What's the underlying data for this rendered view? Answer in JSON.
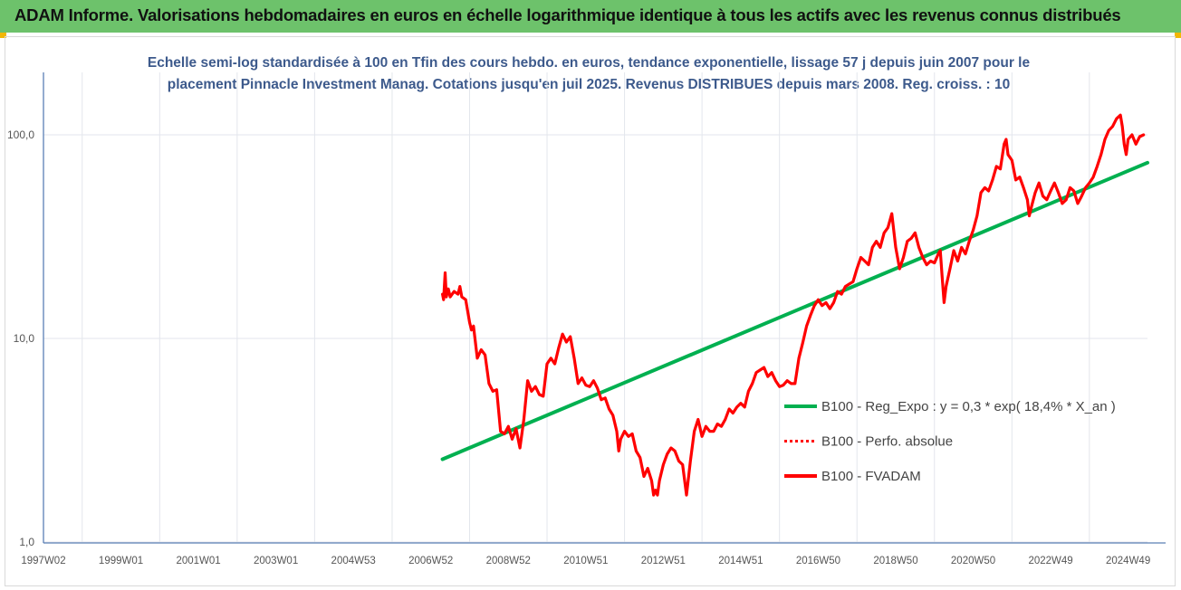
{
  "header": {
    "title": "ADAM Informe. Valorisations hebdomadaires en euros en échelle logarithmique identique à tous les actifs avec les revenus connus distribués",
    "banner_color": "#6dc26b",
    "corner_color": "#f2b705"
  },
  "chart_data": {
    "type": "line",
    "title_line1": "Echelle semi-log standardisée à 100 en Tfin des cours hebdo. en euros, tendance exponentielle, lissage 57 j depuis juin 2007 pour le",
    "title_line2": "placement Pinnacle Investment Manag. Cotations jusqu'en juil 2025. Revenus DISTRIBUES depuis mars 2008. Reg. croiss. : 10",
    "y_scale": "log",
    "ylim": [
      1,
      150
    ],
    "y_ticks": [
      {
        "value": 1,
        "label": "1,0"
      },
      {
        "value": 10,
        "label": "10,0"
      },
      {
        "value": 100,
        "label": "100,0"
      }
    ],
    "xlim": [
      1997.0,
      2025.5
    ],
    "x_ticks": [
      {
        "value": 1997.0,
        "label": "1997W02"
      },
      {
        "value": 1999.0,
        "label": "1999W01"
      },
      {
        "value": 2001.0,
        "label": "2001W01"
      },
      {
        "value": 2003.0,
        "label": "2003W01"
      },
      {
        "value": 2005.0,
        "label": "2004W53"
      },
      {
        "value": 2007.0,
        "label": "2006W52"
      },
      {
        "value": 2009.0,
        "label": "2008W52"
      },
      {
        "value": 2011.0,
        "label": "2010W51"
      },
      {
        "value": 2013.0,
        "label": "2012W51"
      },
      {
        "value": 2015.0,
        "label": "2014W51"
      },
      {
        "value": 2017.0,
        "label": "2016W50"
      },
      {
        "value": 2019.0,
        "label": "2018W50"
      },
      {
        "value": 2021.0,
        "label": "2020W50"
      },
      {
        "value": 2023.0,
        "label": "2022W49"
      },
      {
        "value": 2025.0,
        "label": "2024W49"
      }
    ],
    "grid": "vertical",
    "legend_position": "right",
    "series": [
      {
        "name": "B100 - Reg_Expo : y = 0,3 * exp( 18,4% *  X_an )",
        "color": "#00b050",
        "style": "solid",
        "points": [
          [
            2007.3,
            2.55
          ],
          [
            2025.5,
            73
          ]
        ]
      },
      {
        "name": "B100 - Perfo. absolue",
        "color": "#ff0000",
        "style": "dotted",
        "points": []
      },
      {
        "name": "B100 - FVADAM",
        "color": "#ff0000",
        "style": "solid",
        "points": [
          [
            2007.3,
            16.5
          ],
          [
            2007.33,
            15.5
          ],
          [
            2007.37,
            21.0
          ],
          [
            2007.4,
            16.0
          ],
          [
            2007.45,
            17.5
          ],
          [
            2007.5,
            16.0
          ],
          [
            2007.6,
            17.0
          ],
          [
            2007.7,
            16.5
          ],
          [
            2007.75,
            18.0
          ],
          [
            2007.8,
            16.0
          ],
          [
            2007.9,
            15.5
          ],
          [
            2008.0,
            12.0
          ],
          [
            2008.05,
            11.0
          ],
          [
            2008.1,
            11.5
          ],
          [
            2008.2,
            8.0
          ],
          [
            2008.3,
            8.8
          ],
          [
            2008.4,
            8.3
          ],
          [
            2008.5,
            6.0
          ],
          [
            2008.6,
            5.5
          ],
          [
            2008.7,
            5.6
          ],
          [
            2008.8,
            3.5
          ],
          [
            2008.9,
            3.4
          ],
          [
            2009.0,
            3.7
          ],
          [
            2009.1,
            3.2
          ],
          [
            2009.2,
            3.6
          ],
          [
            2009.3,
            2.9
          ],
          [
            2009.4,
            4.0
          ],
          [
            2009.5,
            6.2
          ],
          [
            2009.6,
            5.5
          ],
          [
            2009.7,
            5.8
          ],
          [
            2009.8,
            5.3
          ],
          [
            2009.9,
            5.2
          ],
          [
            2010.0,
            7.5
          ],
          [
            2010.1,
            8.0
          ],
          [
            2010.2,
            7.5
          ],
          [
            2010.3,
            9.0
          ],
          [
            2010.4,
            10.5
          ],
          [
            2010.5,
            9.6
          ],
          [
            2010.6,
            10.2
          ],
          [
            2010.7,
            8.0
          ],
          [
            2010.8,
            6.0
          ],
          [
            2010.9,
            6.4
          ],
          [
            2011.0,
            5.9
          ],
          [
            2011.1,
            5.8
          ],
          [
            2011.2,
            6.2
          ],
          [
            2011.3,
            5.7
          ],
          [
            2011.4,
            5.0
          ],
          [
            2011.5,
            5.1
          ],
          [
            2011.6,
            4.5
          ],
          [
            2011.7,
            4.2
          ],
          [
            2011.8,
            3.5
          ],
          [
            2011.85,
            2.8
          ],
          [
            2011.9,
            3.2
          ],
          [
            2012.0,
            3.5
          ],
          [
            2012.1,
            3.3
          ],
          [
            2012.2,
            3.4
          ],
          [
            2012.3,
            2.8
          ],
          [
            2012.4,
            2.6
          ],
          [
            2012.5,
            2.1
          ],
          [
            2012.6,
            2.3
          ],
          [
            2012.7,
            2.0
          ],
          [
            2012.75,
            1.7
          ],
          [
            2012.8,
            1.8
          ],
          [
            2012.85,
            1.7
          ],
          [
            2012.9,
            2.0
          ],
          [
            2013.0,
            2.4
          ],
          [
            2013.1,
            2.7
          ],
          [
            2013.2,
            2.9
          ],
          [
            2013.3,
            2.8
          ],
          [
            2013.4,
            2.5
          ],
          [
            2013.5,
            2.4
          ],
          [
            2013.6,
            1.7
          ],
          [
            2013.7,
            2.5
          ],
          [
            2013.8,
            3.5
          ],
          [
            2013.9,
            4.0
          ],
          [
            2014.0,
            3.3
          ],
          [
            2014.1,
            3.7
          ],
          [
            2014.2,
            3.5
          ],
          [
            2014.3,
            3.5
          ],
          [
            2014.4,
            3.8
          ],
          [
            2014.5,
            3.7
          ],
          [
            2014.6,
            4.0
          ],
          [
            2014.7,
            4.5
          ],
          [
            2014.8,
            4.3
          ],
          [
            2014.9,
            4.6
          ],
          [
            2015.0,
            4.8
          ],
          [
            2015.1,
            4.6
          ],
          [
            2015.2,
            5.5
          ],
          [
            2015.3,
            6.0
          ],
          [
            2015.4,
            6.8
          ],
          [
            2015.5,
            7.0
          ],
          [
            2015.6,
            7.2
          ],
          [
            2015.7,
            6.5
          ],
          [
            2015.8,
            6.8
          ],
          [
            2015.9,
            6.2
          ],
          [
            2016.0,
            5.8
          ],
          [
            2016.1,
            5.9
          ],
          [
            2016.2,
            6.2
          ],
          [
            2016.3,
            6.0
          ],
          [
            2016.4,
            6.0
          ],
          [
            2016.5,
            8.0
          ],
          [
            2016.6,
            9.5
          ],
          [
            2016.7,
            11.5
          ],
          [
            2016.8,
            13.0
          ],
          [
            2016.9,
            14.5
          ],
          [
            2017.0,
            15.5
          ],
          [
            2017.1,
            14.5
          ],
          [
            2017.2,
            15.0
          ],
          [
            2017.3,
            14.0
          ],
          [
            2017.4,
            15.0
          ],
          [
            2017.5,
            17.0
          ],
          [
            2017.6,
            16.5
          ],
          [
            2017.7,
            18.0
          ],
          [
            2017.8,
            18.5
          ],
          [
            2017.9,
            19.0
          ],
          [
            2018.0,
            22.0
          ],
          [
            2018.1,
            25.0
          ],
          [
            2018.2,
            24.0
          ],
          [
            2018.3,
            23.0
          ],
          [
            2018.4,
            28.0
          ],
          [
            2018.5,
            30.0
          ],
          [
            2018.6,
            28.0
          ],
          [
            2018.7,
            33.0
          ],
          [
            2018.8,
            35.0
          ],
          [
            2018.9,
            41.0
          ],
          [
            2019.0,
            28.0
          ],
          [
            2019.1,
            22.0
          ],
          [
            2019.2,
            25.0
          ],
          [
            2019.3,
            30.0
          ],
          [
            2019.4,
            31.0
          ],
          [
            2019.5,
            33.0
          ],
          [
            2019.6,
            28.0
          ],
          [
            2019.7,
            25.0
          ],
          [
            2019.8,
            23.0
          ],
          [
            2019.9,
            24.0
          ],
          [
            2020.0,
            23.5
          ],
          [
            2020.1,
            26.0
          ],
          [
            2020.15,
            27.0
          ],
          [
            2020.2,
            20.0
          ],
          [
            2020.25,
            15.0
          ],
          [
            2020.3,
            18.0
          ],
          [
            2020.4,
            22.0
          ],
          [
            2020.5,
            27.0
          ],
          [
            2020.6,
            24.0
          ],
          [
            2020.7,
            28.0
          ],
          [
            2020.8,
            26.0
          ],
          [
            2020.9,
            30.0
          ],
          [
            2021.0,
            34.0
          ],
          [
            2021.1,
            40.0
          ],
          [
            2021.2,
            52.0
          ],
          [
            2021.3,
            55.0
          ],
          [
            2021.4,
            53.0
          ],
          [
            2021.5,
            60.0
          ],
          [
            2021.6,
            70.0
          ],
          [
            2021.7,
            68.0
          ],
          [
            2021.8,
            90.0
          ],
          [
            2021.85,
            95.0
          ],
          [
            2021.9,
            80.0
          ],
          [
            2022.0,
            75.0
          ],
          [
            2022.1,
            60.0
          ],
          [
            2022.2,
            62.0
          ],
          [
            2022.3,
            55.0
          ],
          [
            2022.4,
            48.0
          ],
          [
            2022.45,
            40.0
          ],
          [
            2022.5,
            44.0
          ],
          [
            2022.6,
            52.0
          ],
          [
            2022.7,
            58.0
          ],
          [
            2022.8,
            50.0
          ],
          [
            2022.9,
            48.0
          ],
          [
            2023.0,
            53.0
          ],
          [
            2023.1,
            58.0
          ],
          [
            2023.2,
            52.0
          ],
          [
            2023.3,
            46.0
          ],
          [
            2023.4,
            48.0
          ],
          [
            2023.5,
            55.0
          ],
          [
            2023.6,
            53.0
          ],
          [
            2023.7,
            46.0
          ],
          [
            2023.8,
            50.0
          ],
          [
            2023.9,
            55.0
          ],
          [
            2024.0,
            58.0
          ],
          [
            2024.1,
            62.0
          ],
          [
            2024.2,
            70.0
          ],
          [
            2024.3,
            80.0
          ],
          [
            2024.4,
            95.0
          ],
          [
            2024.5,
            105.0
          ],
          [
            2024.6,
            110.0
          ],
          [
            2024.7,
            120.0
          ],
          [
            2024.8,
            125.0
          ],
          [
            2024.85,
            110.0
          ],
          [
            2024.9,
            90.0
          ],
          [
            2024.95,
            80.0
          ],
          [
            2025.0,
            95.0
          ],
          [
            2025.1,
            100.0
          ],
          [
            2025.2,
            90.0
          ],
          [
            2025.3,
            98.0
          ],
          [
            2025.4,
            100.0
          ]
        ]
      }
    ]
  }
}
